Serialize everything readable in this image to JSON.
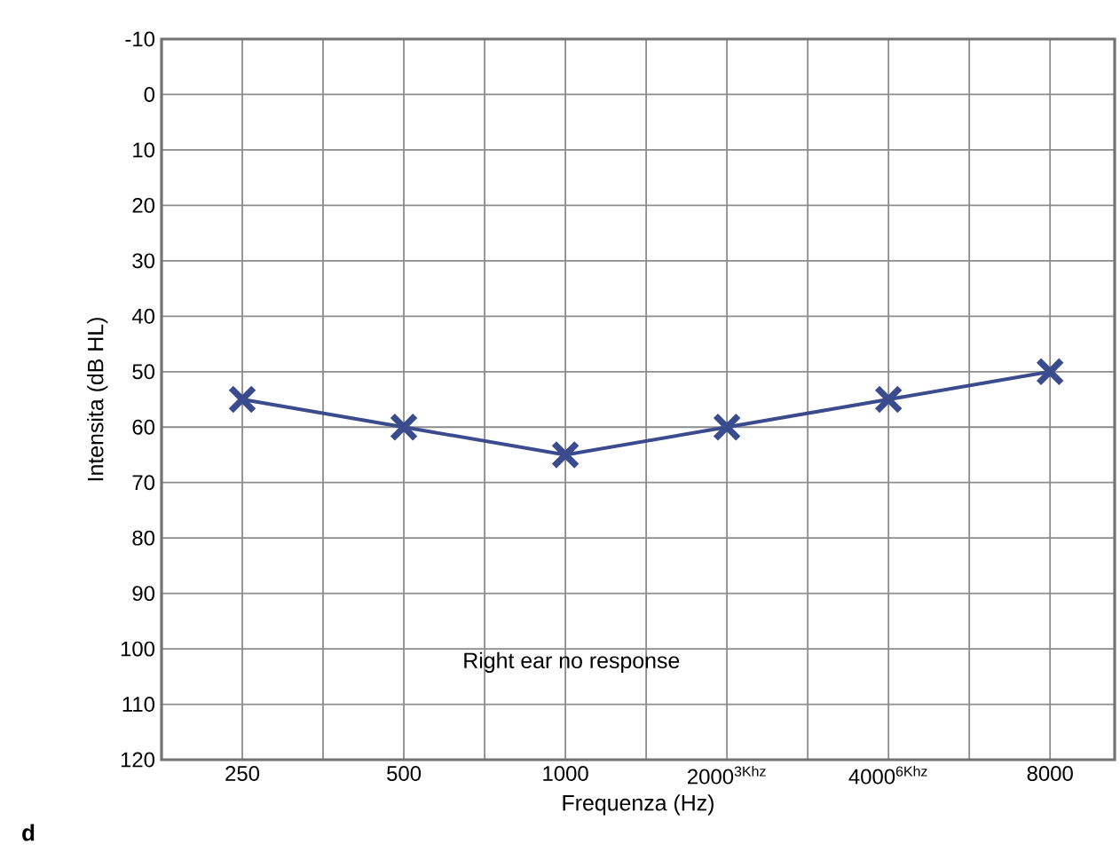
{
  "chart_data": {
    "type": "line",
    "xlabel": "Frequenza (Hz)",
    "ylabel": "Intensita (dB HL)",
    "categories": [
      "250",
      "500",
      "1000",
      "2000$^{3Khz}$",
      "4000$^{6Khz}$",
      "8000"
    ],
    "series": [
      {
        "color": "#3a4b8e",
        "values": [
          55,
          60,
          65,
          60,
          55,
          50
        ]
      }
    ],
    "ylim": [
      120,
      -10
    ],
    "yticks": [
      -10,
      0,
      10,
      20,
      30,
      40,
      50,
      60,
      70,
      80,
      90,
      100,
      110,
      120
    ],
    "grid": true,
    "marker": "cross",
    "line_style": "solid",
    "annotations": [
      "Right ear no response",
      "d"
    ]
  }
}
